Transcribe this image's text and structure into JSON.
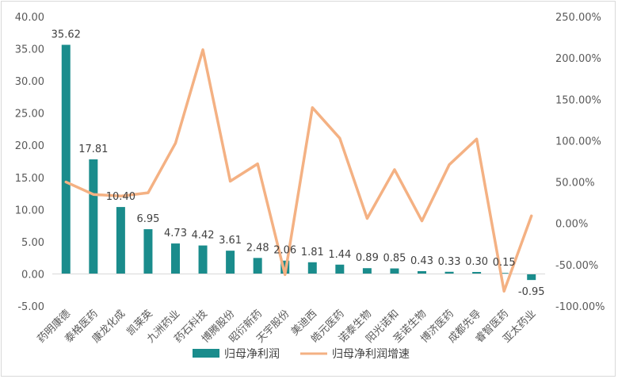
{
  "chart_data": {
    "type": "bar",
    "categories": [
      "药明康德",
      "泰格医药",
      "康龙化成",
      "凯莱英",
      "九洲药业",
      "药石科技",
      "博腾股份",
      "昭衍新药",
      "天宇股份",
      "美迪西",
      "皓元医药",
      "诺泰生物",
      "阳光诺和",
      "圣诺生物",
      "博济医药",
      "成都先导",
      "睿智医药",
      "亚太药业"
    ],
    "series": [
      {
        "name": "归母净利润",
        "type": "bar",
        "axis": "left",
        "color": "#1a8c8c",
        "values": [
          35.62,
          17.81,
          10.4,
          6.95,
          4.73,
          4.42,
          3.61,
          2.48,
          2.06,
          1.81,
          1.44,
          0.89,
          0.85,
          0.43,
          0.33,
          0.3,
          0.15,
          -0.95
        ],
        "labels": [
          "35.62",
          "17.81",
          "10.40",
          "6.95",
          "4.73",
          "4.42",
          "3.61",
          "2.48",
          "2.06",
          "1.81",
          "1.44",
          "0.89",
          "0.85",
          "0.43",
          "0.33",
          "0.30",
          "0.15",
          "-0.95"
        ]
      },
      {
        "name": "归母净利润增速",
        "type": "line",
        "axis": "right",
        "color": "#f4b183",
        "values": [
          0.5,
          0.35,
          0.33,
          0.37,
          0.97,
          2.1,
          0.51,
          0.72,
          -0.62,
          1.4,
          1.03,
          0.06,
          0.65,
          0.03,
          0.71,
          1.02,
          -0.82,
          0.09
        ]
      }
    ],
    "y_left": {
      "min": -5,
      "max": 40,
      "step": 5,
      "tick_labels": [
        "-5.00",
        "0.00",
        "5.00",
        "10.00",
        "15.00",
        "20.00",
        "25.00",
        "30.00",
        "35.00",
        "40.00"
      ]
    },
    "y_right": {
      "min": -1.0,
      "max": 2.5,
      "step": 0.5,
      "tick_labels": [
        "-100.00%",
        "-50.00%",
        "0.00%",
        "50.00%",
        "100.00%",
        "150.00%",
        "200.00%",
        "250.00%"
      ]
    },
    "grid": false,
    "legend": "bottom"
  }
}
